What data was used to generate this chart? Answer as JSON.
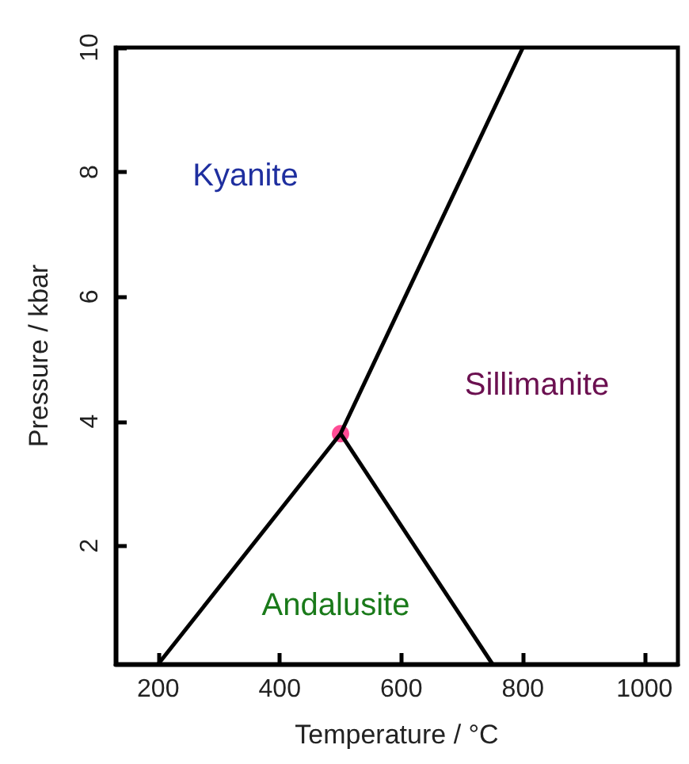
{
  "chart_data": {
    "type": "line",
    "xlabel": "Temperature / °C",
    "ylabel": "Pressure / kbar",
    "xlim": [
      130,
      1055
    ],
    "xticks": [
      200,
      400,
      600,
      800,
      1000
    ],
    "ylim": [
      0.1,
      10
    ],
    "yticks": [
      2,
      4,
      6,
      8,
      10
    ],
    "grid": false,
    "marker": "none",
    "series": [
      {
        "color": "#000000",
        "x": [
          200,
          500
        ],
        "values": [
          0.1,
          3.8
        ]
      },
      {
        "color": "#000000",
        "x": [
          500,
          750
        ],
        "values": [
          3.8,
          0.1
        ]
      },
      {
        "color": "#000000",
        "x": [
          500,
          800
        ],
        "values": [
          3.8,
          10
        ]
      },
      {
        "type": "scatter",
        "color": "#ff1f7a",
        "marker": "circle",
        "x": [
          500
        ],
        "values": [
          3.8
        ]
      }
    ],
    "annotations": [
      "Kyanite",
      "Sillimanite",
      "Andalusite"
    ]
  }
}
